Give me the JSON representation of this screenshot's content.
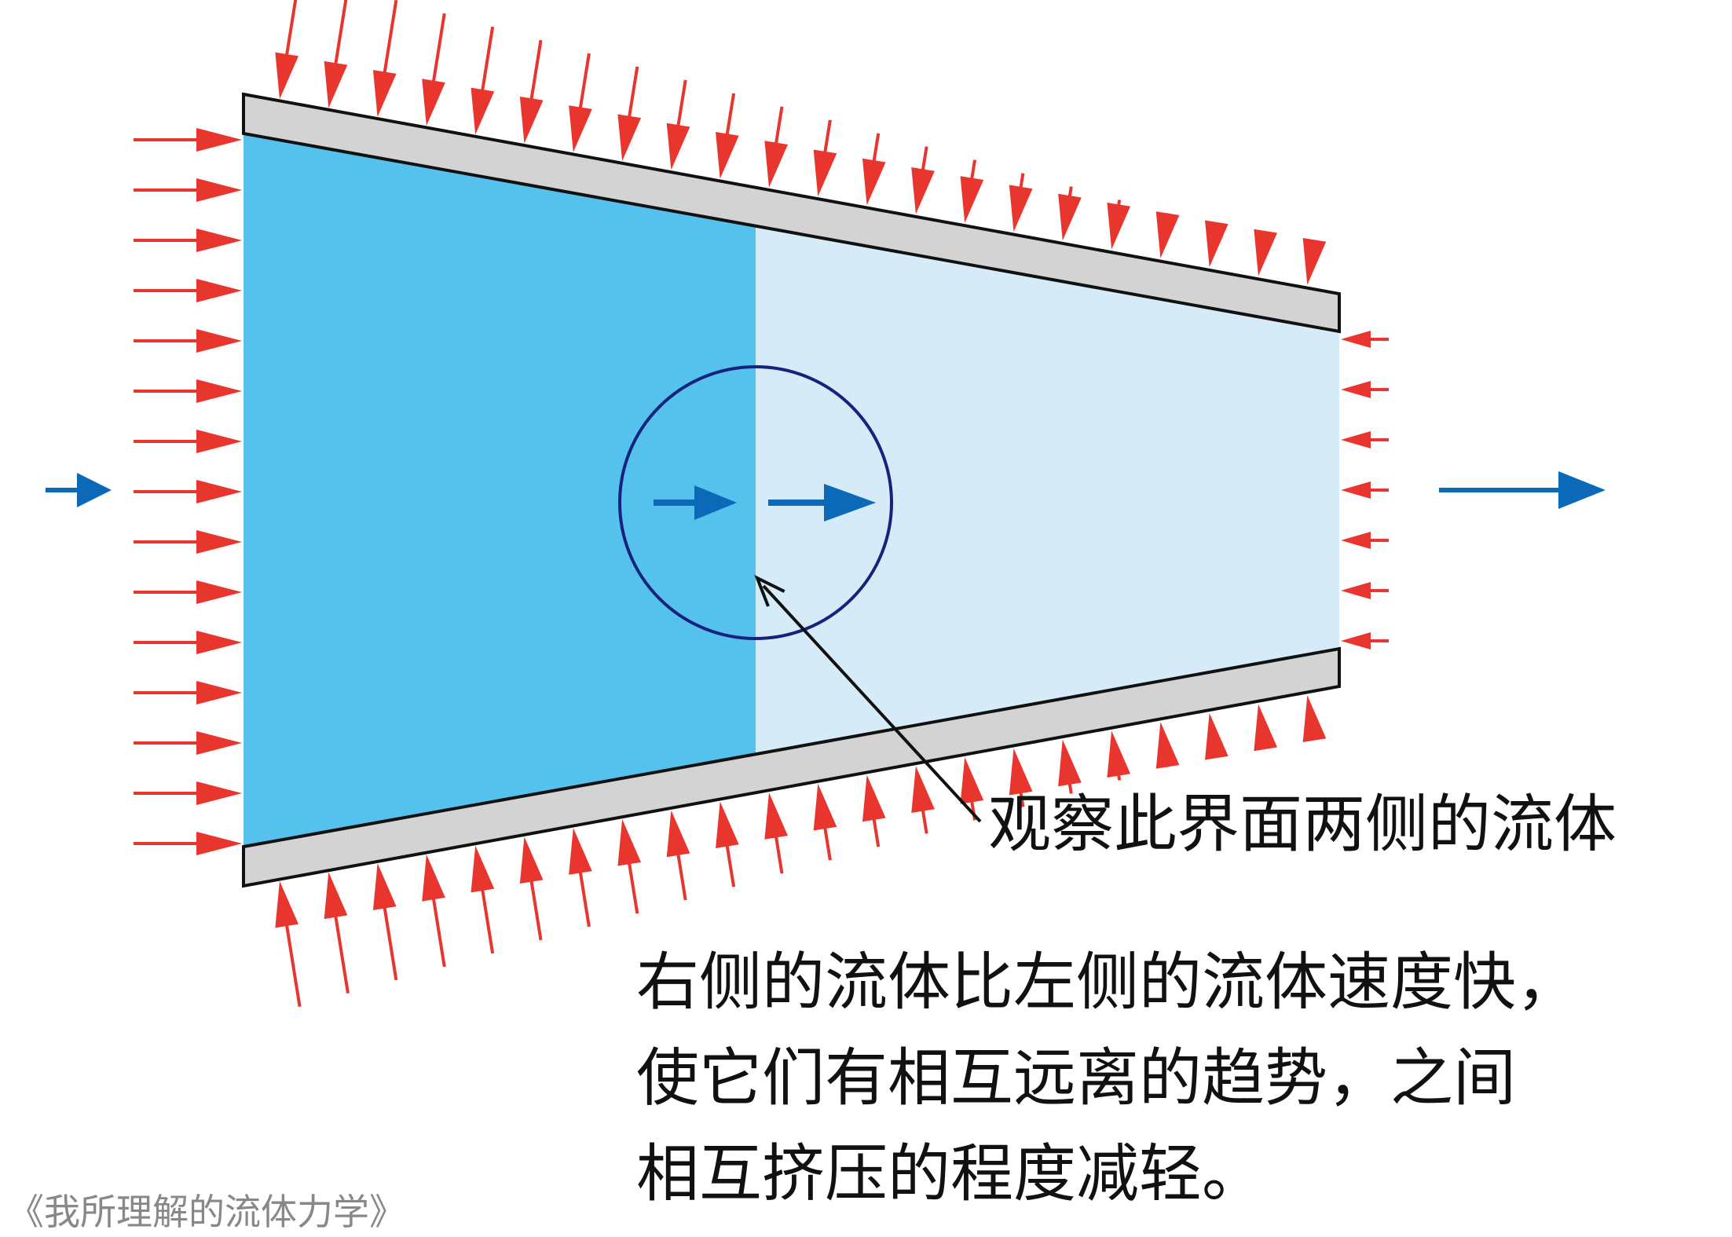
{
  "colors": {
    "pressure_arrow": "#E8352D",
    "flow_arrow": "#0B69B8",
    "fluid_left": "#55C2EE",
    "fluid_right": "#D5EBF8",
    "wall_fill": "#D3D3D3",
    "wall_stroke": "#111111",
    "circle": "#15237E",
    "pointer": "#111111"
  },
  "labels": {
    "interface_label": "观察此界面两侧的流体",
    "explanation_lines": [
      "右侧的流体比左侧的流体速度快，",
      "使它们有相互远离的趋势，之间",
      "相互挤压的程度减轻。"
    ],
    "source": "《我所理解的流体力学》"
  }
}
